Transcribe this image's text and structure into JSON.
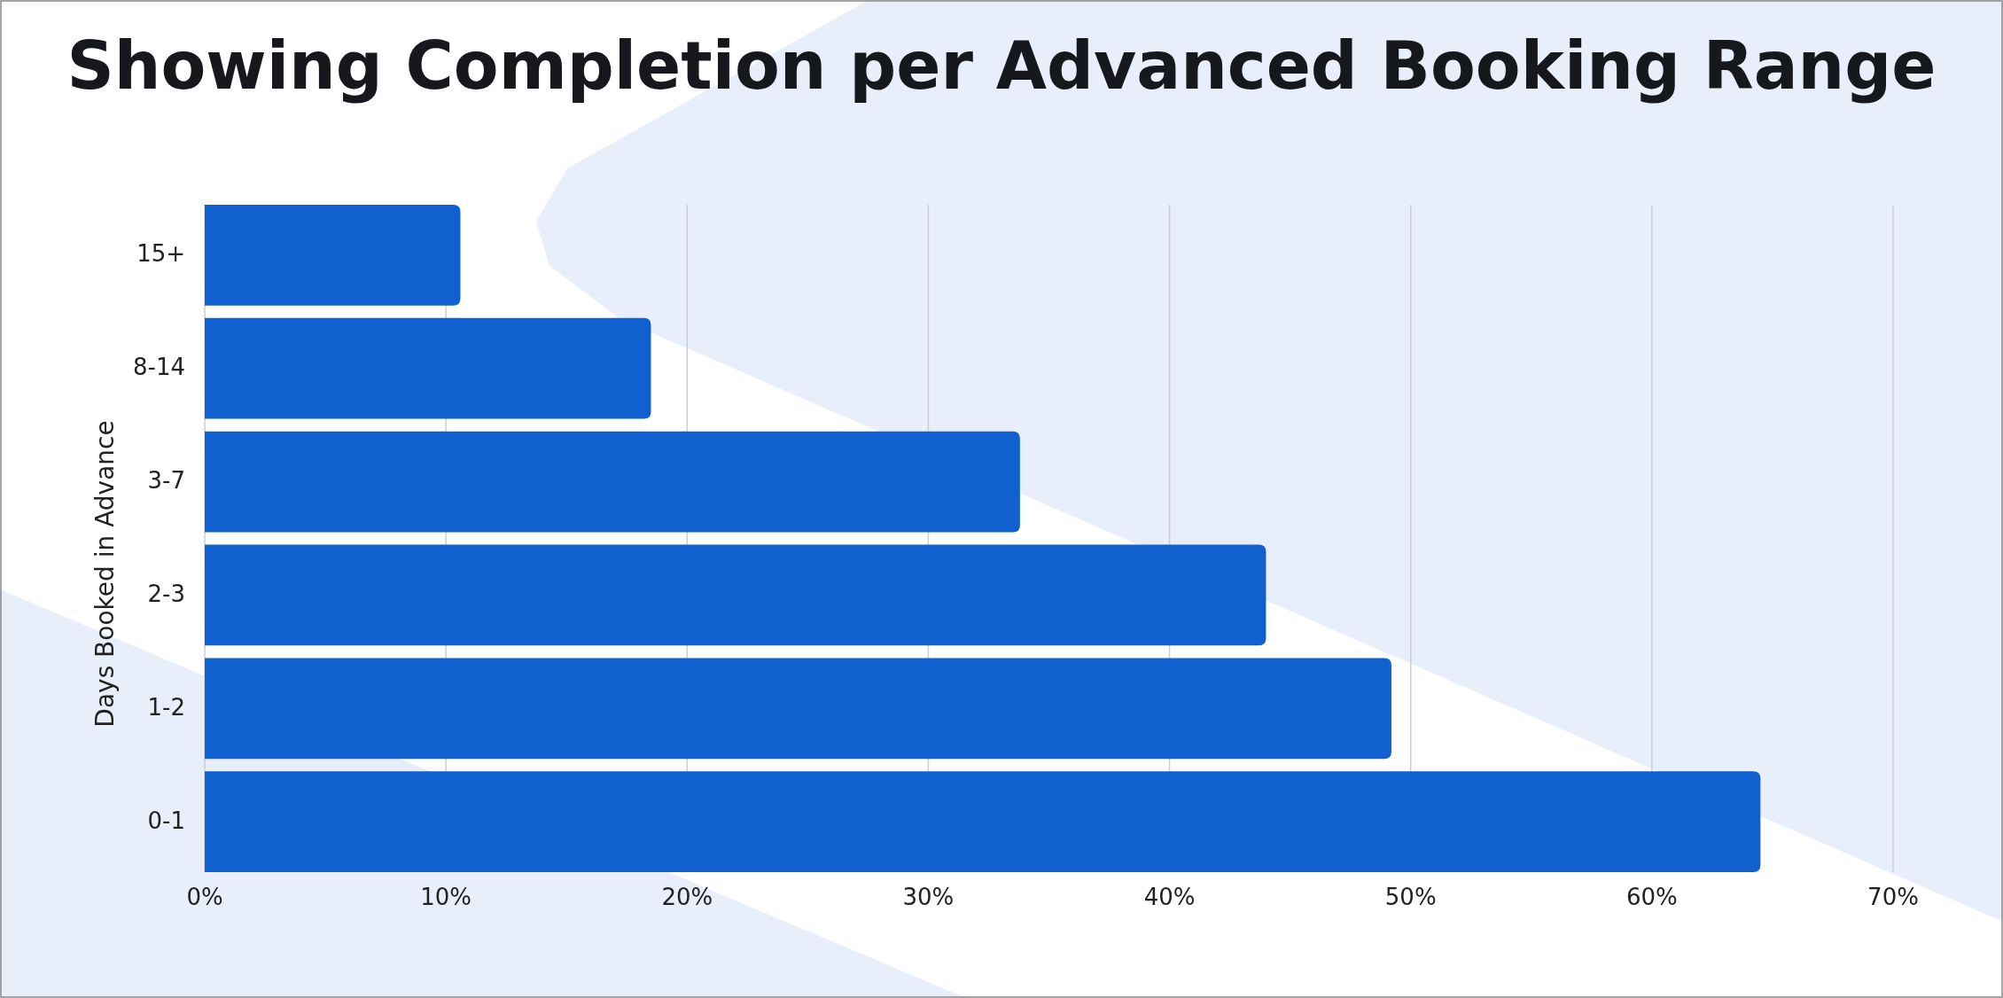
{
  "chart_data": {
    "type": "bar",
    "orientation": "horizontal",
    "title": "Showing Completion per Advanced Booking Range",
    "ylabel": "Days Booked in Advance",
    "categories": [
      "15+",
      "8-14",
      "3-7",
      "2-3",
      "1-2",
      "0-1"
    ],
    "values": [
      10.6,
      18.5,
      33.8,
      44.0,
      49.2,
      64.5
    ],
    "color": "#1160cf",
    "xlim": [
      0,
      70
    ],
    "xticks": [
      {
        "value": 0,
        "label": "0%"
      },
      {
        "value": 10,
        "label": "10%"
      },
      {
        "value": 20,
        "label": "20%"
      },
      {
        "value": 30,
        "label": "30%"
      },
      {
        "value": 40,
        "label": "40%"
      },
      {
        "value": 50,
        "label": "50%"
      },
      {
        "value": 60,
        "label": "60%"
      },
      {
        "value": 70,
        "label": "70%"
      }
    ],
    "grid": "x"
  }
}
